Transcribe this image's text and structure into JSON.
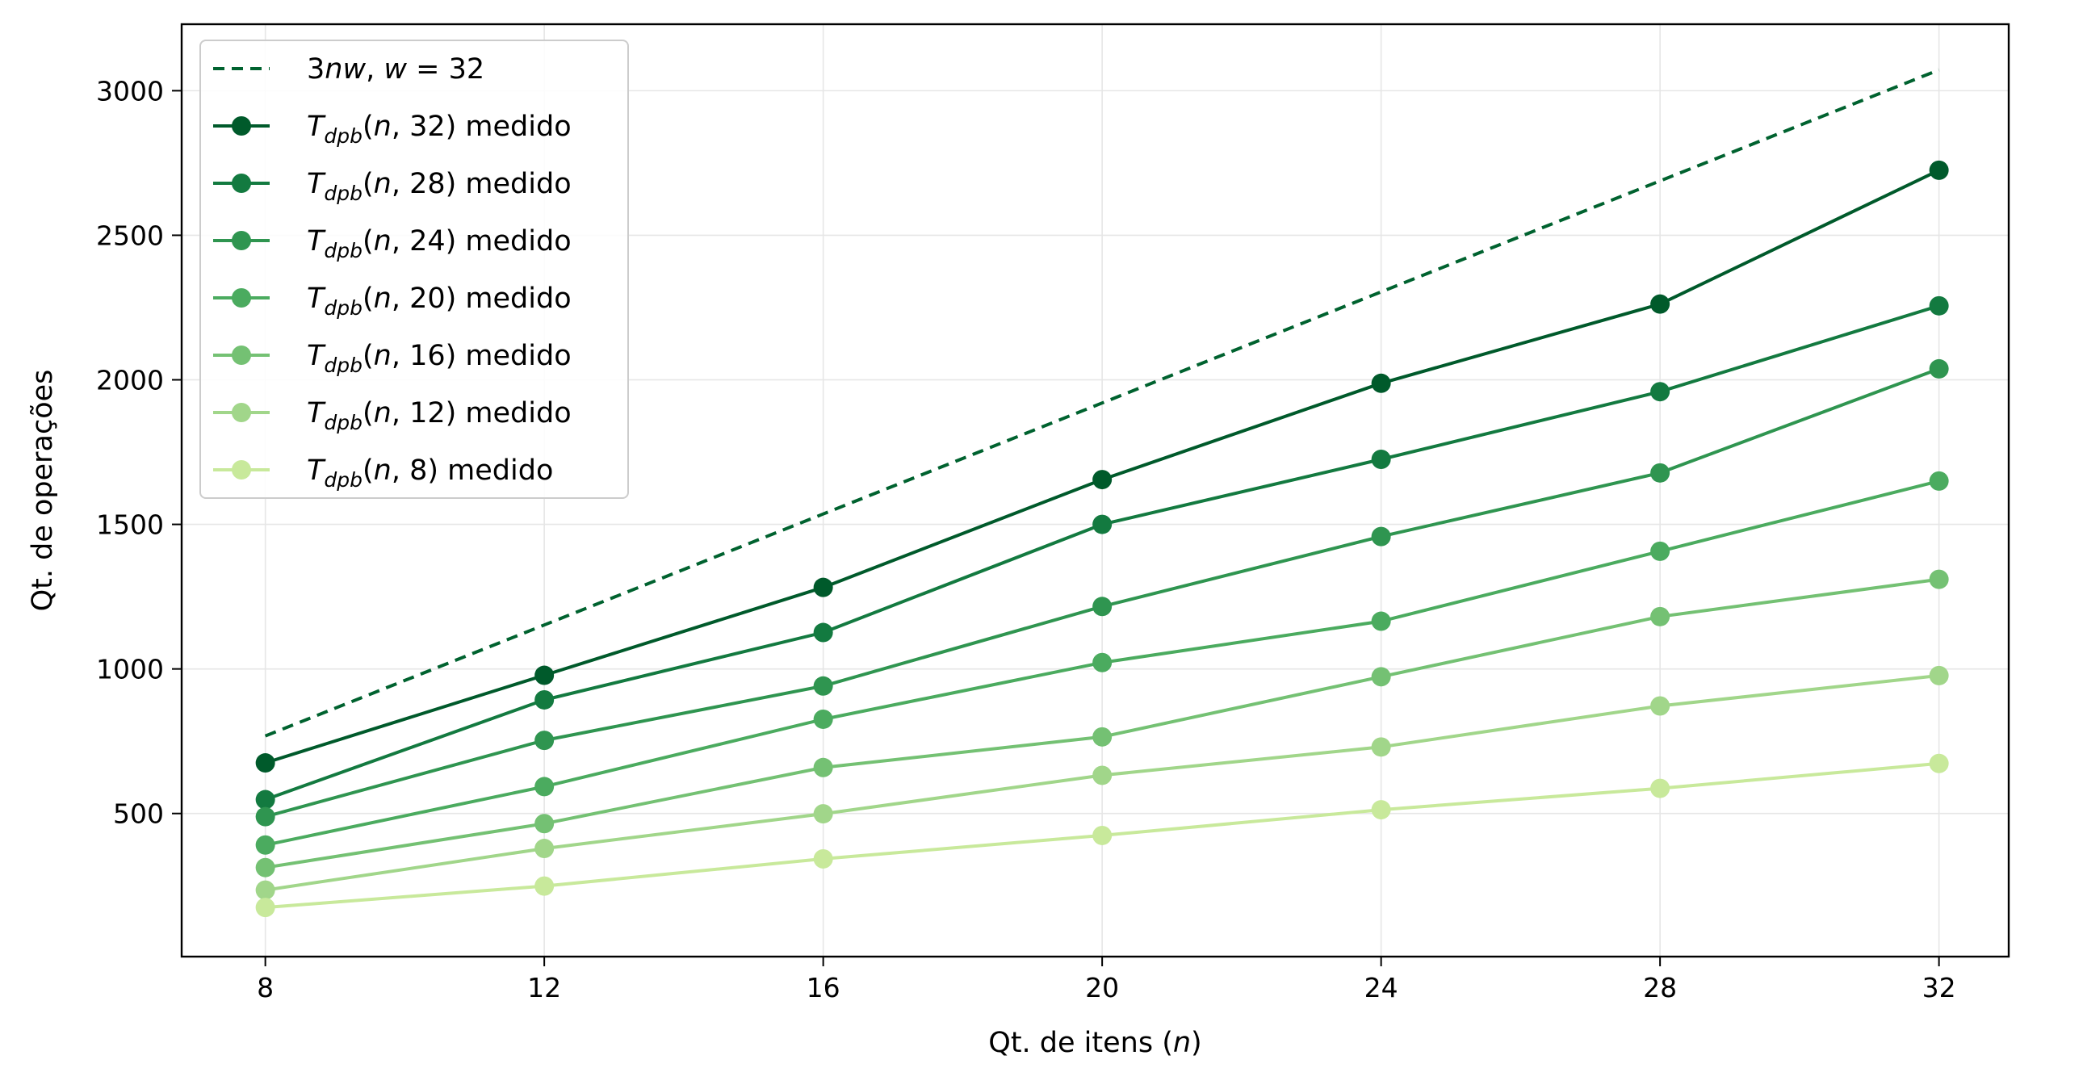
{
  "chart_data": {
    "type": "line",
    "xlabel": "Qt. de itens (n)",
    "ylabel": "Qt. de operações",
    "x": [
      8,
      12,
      16,
      20,
      24,
      28,
      32
    ],
    "xlim": [
      6.8,
      33.0
    ],
    "ylim": [
      5,
      3230
    ],
    "xticks": [
      8,
      12,
      16,
      20,
      24,
      28,
      32
    ],
    "yticks": [
      500,
      1000,
      1500,
      2000,
      2500,
      3000
    ],
    "grid": true,
    "legend_position": "top-left",
    "series": [
      {
        "name": "3nw, w = 32",
        "color": "#00622f",
        "style": "dashed",
        "marker": false,
        "values": [
          768,
          1152,
          1536,
          1920,
          2304,
          2688,
          3072
        ]
      },
      {
        "name": "T_dpb(n, 32) medido",
        "color": "#005a2b",
        "style": "solid",
        "marker": true,
        "values": [
          675,
          978,
          1282,
          1655,
          1988,
          2262,
          2725
        ]
      },
      {
        "name": "T_dpb(n, 28) medido",
        "color": "#137a40",
        "style": "solid",
        "marker": true,
        "values": [
          548,
          893,
          1126,
          1500,
          1725,
          1959,
          2256
        ]
      },
      {
        "name": "T_dpb(n, 24) medido",
        "color": "#2f9550",
        "style": "solid",
        "marker": true,
        "values": [
          489,
          753,
          941,
          1216,
          1458,
          1678,
          2038
        ]
      },
      {
        "name": "T_dpb(n, 20) medido",
        "color": "#4bab5f",
        "style": "solid",
        "marker": true,
        "values": [
          391,
          593,
          826,
          1022,
          1165,
          1407,
          1650
        ]
      },
      {
        "name": "T_dpb(n, 16) medido",
        "color": "#74c173",
        "style": "solid",
        "marker": true,
        "values": [
          313,
          465,
          659,
          765,
          973,
          1181,
          1310
        ]
      },
      {
        "name": "T_dpb(n, 12) medido",
        "color": "#a1d68a",
        "style": "solid",
        "marker": true,
        "values": [
          235,
          379,
          499,
          632,
          730,
          872,
          977
        ]
      },
      {
        "name": "T_dpb(n, 8) medido",
        "color": "#c8e99b",
        "style": "solid",
        "marker": true,
        "values": [
          175,
          249,
          343,
          424,
          513,
          587,
          673
        ]
      }
    ],
    "legend": [
      {
        "main": "3",
        "italic": "nw",
        "rest": ", ",
        "italic2": "w",
        "tail": " = 32"
      },
      {
        "sub": "dpb",
        "arg": "32"
      },
      {
        "sub": "dpb",
        "arg": "28"
      },
      {
        "sub": "dpb",
        "arg": "24"
      },
      {
        "sub": "dpb",
        "arg": "20"
      },
      {
        "sub": "dpb",
        "arg": "16"
      },
      {
        "sub": "dpb",
        "arg": "12"
      },
      {
        "sub": "dpb",
        "arg": "8"
      }
    ],
    "legend_suffix": " medido",
    "xlabel_parts": {
      "pre": "Qt. de itens (",
      "var": "n",
      "post": ")"
    }
  }
}
